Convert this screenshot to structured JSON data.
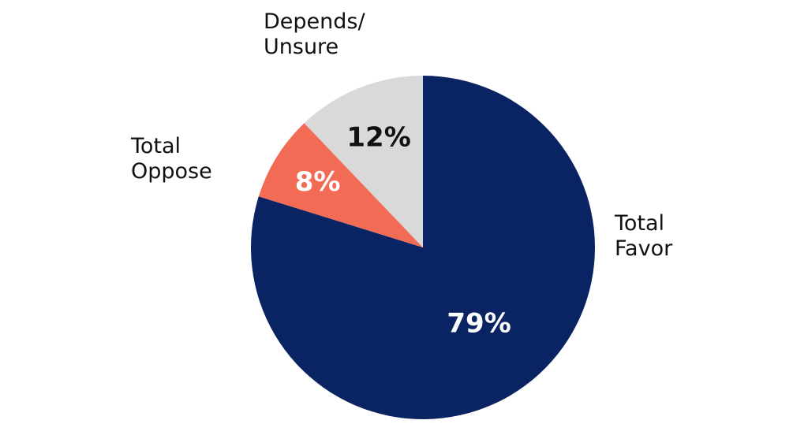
{
  "chart_data": {
    "type": "pie",
    "title": "",
    "slices": [
      {
        "label_lines": [
          "Total",
          "Favor"
        ],
        "value": 79,
        "value_label": "79%",
        "color": "#0a2463",
        "text_color": "#ffffff"
      },
      {
        "label_lines": [
          "Total",
          "Oppose"
        ],
        "value": 8,
        "value_label": "8%",
        "color": "#f26b55",
        "text_color": "#ffffff"
      },
      {
        "label_lines": [
          "Depends/",
          "Unsure"
        ],
        "value": 12,
        "value_label": "12%",
        "color": "#d9d9d9",
        "text_color": "#111111"
      }
    ],
    "start": "12 o'clock",
    "direction": "clockwise",
    "legend": "none (labels placed next to slices)"
  }
}
